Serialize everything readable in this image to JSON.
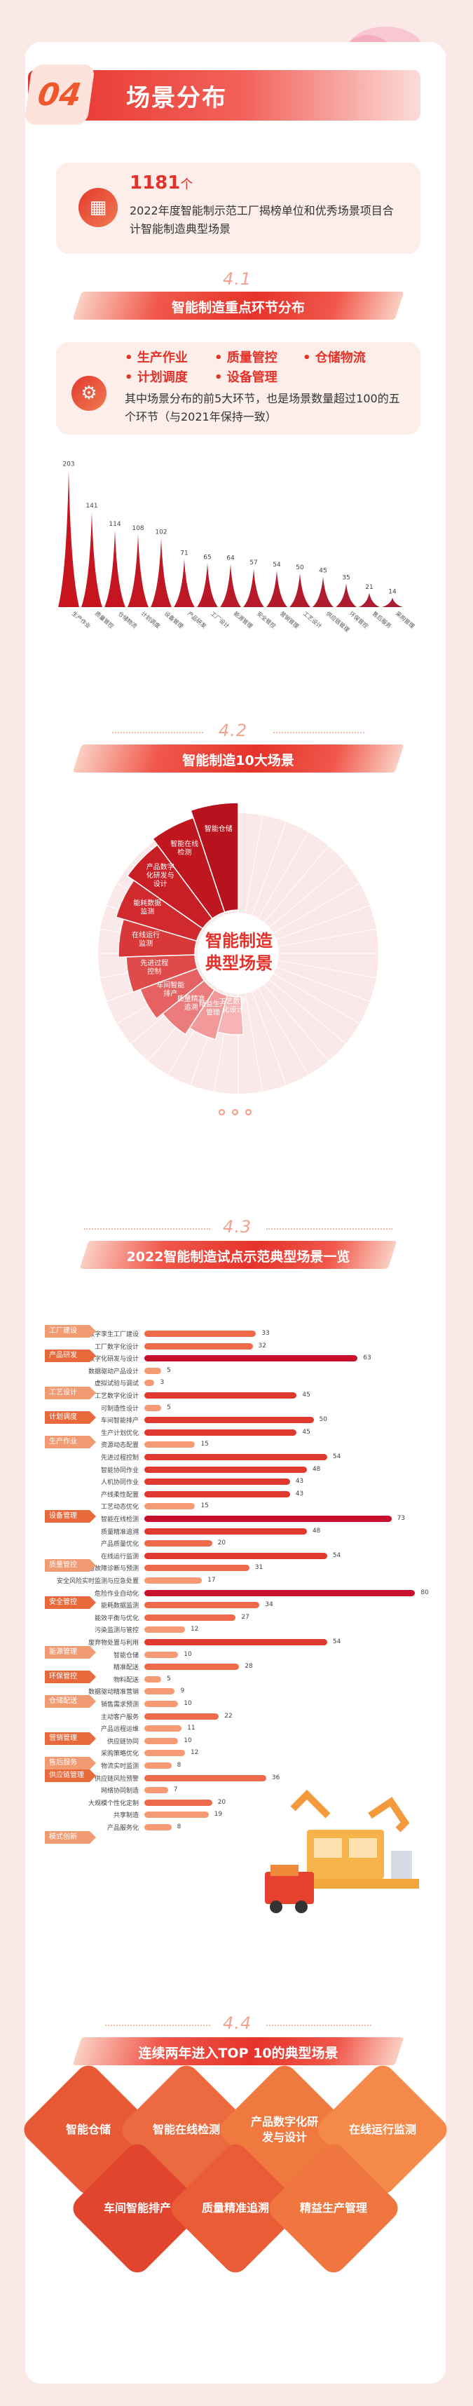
{
  "header": {
    "number": "04",
    "title": "场景分布"
  },
  "summary": {
    "count": "1181",
    "unit": "个",
    "text": "2022年度智能制示范工厂揭榜单位和优秀场景项目合计智能制造典型场景"
  },
  "section1": {
    "num": "4.1",
    "title": "智能制造重点环节分布",
    "stages": [
      "生产作业",
      "质量管控",
      "仓储物流",
      "计划调度",
      "设备管理"
    ],
    "text": "其中场景分布的前5大环节，也是场景数量超过100的五个环节（与2021年保持一致）"
  },
  "section2": {
    "num": "4.2",
    "title": "智能制造10大场景",
    "center_line1": "智能制造",
    "center_line2": "典型场景"
  },
  "section3": {
    "num": "4.3",
    "title": "2022智能制造试点示范典型场景一览"
  },
  "section4": {
    "num": "4.4",
    "title": "连续两年进入TOP 10的典型场景",
    "items": [
      "智能仓储",
      "智能在线检测",
      "产品数字化研发与设计",
      "在线运行监测",
      "车间智能排产",
      "质量精准追溯",
      "精益生产管理"
    ]
  },
  "colors": {
    "accent": "#e3322a",
    "orange": "#f29a72",
    "pink_bg": "#fdeeea"
  },
  "chart_data": [
    {
      "type": "bar",
      "title": "智能制造重点环节分布",
      "categories": [
        "生产作业",
        "质量管控",
        "仓储物流",
        "计划调度",
        "设备管理",
        "产品研发",
        "工厂设计",
        "能源管理",
        "安全管控",
        "营销管理",
        "工艺设计",
        "供应链管理",
        "环保管控",
        "售后服务",
        "采购管理"
      ],
      "values": [
        203,
        141,
        114,
        108,
        102,
        71,
        65,
        64,
        57,
        54,
        50,
        45,
        35,
        21,
        14
      ],
      "xlabel": "",
      "ylabel": ""
    },
    {
      "type": "pie",
      "title": "智能制造10大场景",
      "labels": [
        "智能仓储",
        "智能在线检测",
        "产品数字化研发与设计",
        "能耗数据监测",
        "在线运行监测",
        "先进过程控制",
        "车间智能排产",
        "质量精准追溯",
        "精益生产管理",
        "工艺数字化设计"
      ]
    },
    {
      "type": "bar",
      "title": "2022智能制造试点示范典型场景一览",
      "orientation": "horizontal",
      "groups": [
        {
          "name": "工厂建设",
          "start": 0
        },
        {
          "name": "产品研发",
          "start": 2
        },
        {
          "name": "工艺设计",
          "start": 5
        },
        {
          "name": "计划调度",
          "start": 7
        },
        {
          "name": "生产作业",
          "start": 9
        },
        {
          "name": "设备管理",
          "start": 15
        },
        {
          "name": "质量管控",
          "start": 19
        },
        {
          "name": "安全管控",
          "start": 22
        },
        {
          "name": "能源管理",
          "start": 26
        },
        {
          "name": "环保管控",
          "start": 28
        },
        {
          "name": "仓储配送",
          "start": 30
        },
        {
          "name": "营销管理",
          "start": 33
        },
        {
          "name": "售后服务",
          "start": 35
        },
        {
          "name": "供应链管理",
          "start": 36
        },
        {
          "name": "模式创新",
          "start": 41
        }
      ],
      "categories": [
        "数字孪生工厂建设",
        "工厂数字化设计",
        "产品数字化研发与设计",
        "数据驱动产品设计",
        "虚拟试验与调试",
        "工艺数字化设计",
        "可制造性设计",
        "车间智能排产",
        "生产计划优化",
        "资源动态配置",
        "先进过程控制",
        "智能协同作业",
        "人机协同作业",
        "产线柔性配置",
        "工艺动态优化",
        "智能在线检测",
        "质量精准追溯",
        "产品质量优化",
        "在线运行监测",
        "设备故障诊断与预测",
        "安全风险实时监测与应急处置",
        "危险作业自动化",
        "能耗数据监测",
        "能效平衡与优化",
        "污染监测与管控",
        "废弃物处置与利用",
        "智能仓储",
        "精准配送",
        "物料配送",
        "数据驱动精准营销",
        "销售需求预测",
        "主动客户服务",
        "产品远程运维",
        "供应链协同",
        "采购策略优化",
        "物流实时监测",
        "供应链风险预警",
        "网络协同制造",
        "大规模个性化定制",
        "共享制造",
        "产品服务化"
      ],
      "values": [
        33,
        32,
        63,
        5,
        3,
        45,
        5,
        50,
        45,
        15,
        54,
        48,
        43,
        43,
        15,
        73,
        48,
        20,
        54,
        31,
        17,
        80,
        34,
        27,
        12,
        54,
        10,
        28,
        5,
        9,
        10,
        22,
        11,
        10,
        12,
        8,
        36,
        7,
        20,
        19,
        8
      ]
    }
  ]
}
